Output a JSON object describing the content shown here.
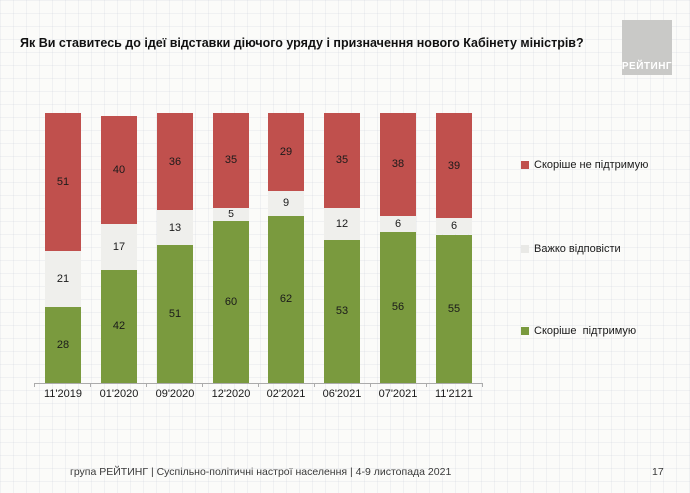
{
  "title": "Як Ви ставитесь до ідеї відставки діючого уряду і призначення нового Кабінету міністрів?",
  "logo": {
    "text": "РЕЙТИНГ"
  },
  "legend": [
    {
      "label": "Скоріше не підтримую",
      "color": "#c0504d",
      "y": 159
    },
    {
      "label": "Важко відповісти",
      "color": "#e9e9e6",
      "y": 243
    },
    {
      "label": "Скоріше  підтримую",
      "color": "#7a9a3e",
      "y": 325
    }
  ],
  "footer": {
    "left": "група РЕЙТИНГ | Суспільно-політичні настрої населення  | 4-9 листопада 2021",
    "page": "17"
  },
  "chart_data": {
    "type": "bar",
    "stacked": true,
    "title": "Як Ви ставитесь до ідеї відставки діючого уряду і призначення нового Кабінету міністрів?",
    "categories": [
      "11'2019",
      "01'2020",
      "09'2020",
      "12'2020",
      "02'2021",
      "06'2021",
      "07'2021",
      "11'2121"
    ],
    "series": [
      {
        "name": "Скоріше підтримую",
        "color": "#7a9a3e",
        "values": [
          28,
          42,
          51,
          60,
          62,
          53,
          56,
          55
        ]
      },
      {
        "name": "Важко відповісти",
        "color": "#efefec",
        "values": [
          21,
          17,
          13,
          5,
          9,
          12,
          6,
          6
        ]
      },
      {
        "name": "Скоріше не підтримую",
        "color": "#c0504d",
        "values": [
          51,
          40,
          36,
          35,
          29,
          35,
          38,
          39
        ]
      }
    ],
    "xlabel": "",
    "ylabel": "",
    "ylim": [
      0,
      100
    ],
    "grid": false,
    "legend_position": "right",
    "value_labels": true
  }
}
